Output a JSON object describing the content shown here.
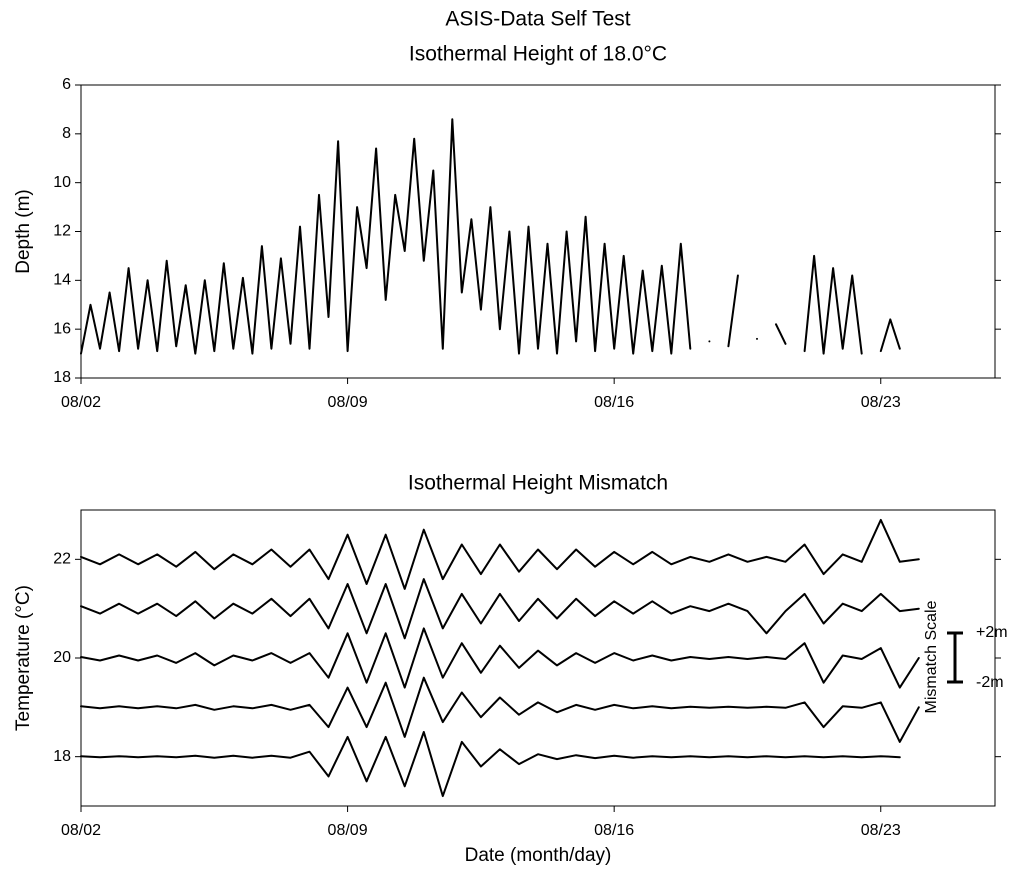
{
  "title": "ASIS-Data Self Test",
  "chart_data": [
    {
      "type": "line",
      "title": "Isothermal Height of 18.0°C",
      "y_label": "Depth (m)",
      "x": [
        2,
        2.25,
        2.5,
        2.75,
        3,
        3.25,
        3.5,
        3.75,
        4,
        4.25,
        4.5,
        4.75,
        5,
        5.25,
        5.5,
        5.75,
        6,
        6.25,
        6.5,
        6.75,
        7,
        7.25,
        7.5,
        7.75,
        8,
        8.25,
        8.5,
        8.75,
        9,
        9.25,
        9.5,
        9.75,
        10,
        10.25,
        10.5,
        10.75,
        11,
        11.25,
        11.5,
        11.75,
        12,
        12.25,
        12.5,
        12.75,
        13,
        13.25,
        13.5,
        13.75,
        14,
        14.25,
        14.5,
        14.75,
        15,
        15.25,
        15.5,
        15.75,
        16,
        16.25,
        16.5,
        16.75,
        17,
        17.25,
        17.5,
        17.75,
        18,
        18.25,
        18.5,
        18.75,
        19,
        19.25,
        19.5,
        19.75,
        20,
        20.25,
        20.5,
        20.75,
        21,
        21.25,
        21.5,
        21.75,
        22,
        22.25,
        22.5,
        22.75,
        23,
        23.25,
        23.5,
        23.75
      ],
      "series": [
        {
          "color": "#000000",
          "values": [
            17,
            15,
            16.8,
            14.5,
            16.9,
            13.5,
            16.8,
            14,
            16.9,
            13.2,
            16.7,
            14.2,
            17,
            14,
            16.9,
            13.3,
            16.8,
            13.9,
            17,
            12.6,
            16.8,
            13.1,
            16.6,
            11.8,
            16.8,
            10.5,
            15.5,
            8.3,
            16.9,
            11,
            13.5,
            8.6,
            14.8,
            10.5,
            12.8,
            8.2,
            13.2,
            9.5,
            16.8,
            7.4,
            14.5,
            11.5,
            15.2,
            11,
            16,
            12,
            17,
            11.8,
            16.8,
            12.5,
            17,
            12,
            16.5,
            11.4,
            16.9,
            12.5,
            16.8,
            13,
            17,
            13.6,
            16.9,
            13.4,
            17,
            12.5,
            16.8,
            null,
            16.5,
            null,
            16.7,
            13.8,
            null,
            16.4,
            null,
            15.8,
            16.6,
            null,
            16.9,
            13,
            17,
            13.5,
            16.8,
            13.8,
            17,
            null,
            16.9,
            15.6,
            16.8,
            null
          ]
        }
      ],
      "xlim": [
        2,
        26
      ],
      "xticks": [
        {
          "value": 2,
          "label": "08/02"
        },
        {
          "value": 9,
          "label": "08/09"
        },
        {
          "value": 16,
          "label": "08/16"
        },
        {
          "value": 23,
          "label": "08/23"
        }
      ],
      "ylim": [
        6,
        18
      ],
      "y_inverted": true,
      "yticks": [
        6,
        8,
        10,
        12,
        14,
        16,
        18
      ]
    },
    {
      "type": "line",
      "title": "Isothermal Height Mismatch",
      "x_label": "Date (month/day)",
      "y_label": "Temperature (°C)",
      "x": [
        2,
        2.5,
        3,
        3.5,
        4,
        4.5,
        5,
        5.5,
        6,
        6.5,
        7,
        7.5,
        8,
        8.5,
        9,
        9.5,
        10,
        10.5,
        11,
        11.5,
        12,
        12.5,
        13,
        13.5,
        14,
        14.5,
        15,
        15.5,
        16,
        16.5,
        17,
        17.5,
        18,
        18.5,
        19,
        19.5,
        20,
        20.5,
        21,
        21.5,
        22,
        22.5,
        23,
        23.5,
        24
      ],
      "series": [
        {
          "color": "#000000",
          "values": [
            22.05,
            21.9,
            22.1,
            21.9,
            22.1,
            21.85,
            22.15,
            21.8,
            22.1,
            21.9,
            22.2,
            21.85,
            22.2,
            21.6,
            22.5,
            21.5,
            22.5,
            21.4,
            22.6,
            21.6,
            22.3,
            21.7,
            22.3,
            21.75,
            22.2,
            21.8,
            22.2,
            21.85,
            22.15,
            21.9,
            22.15,
            21.9,
            22.05,
            21.95,
            22.1,
            21.95,
            22.05,
            21.95,
            22.3,
            21.7,
            22.1,
            21.95,
            22.8,
            21.95,
            22
          ]
        },
        {
          "color": "#000000",
          "values": [
            21.05,
            20.9,
            21.1,
            20.9,
            21.1,
            20.85,
            21.15,
            20.8,
            21.1,
            20.9,
            21.2,
            20.85,
            21.2,
            20.6,
            21.5,
            20.5,
            21.5,
            20.4,
            21.6,
            20.6,
            21.3,
            20.7,
            21.3,
            20.75,
            21.2,
            20.8,
            21.2,
            20.85,
            21.15,
            20.9,
            21.15,
            20.9,
            21.05,
            20.95,
            21.1,
            20.95,
            20.5,
            20.95,
            21.3,
            20.7,
            21.1,
            20.95,
            21.3,
            20.95,
            21
          ]
        },
        {
          "color": "#000000",
          "values": [
            20.02,
            19.95,
            20.05,
            19.95,
            20.05,
            19.9,
            20.1,
            19.85,
            20.05,
            19.95,
            20.1,
            19.9,
            20.1,
            19.6,
            20.5,
            19.5,
            20.5,
            19.4,
            20.6,
            19.6,
            20.3,
            19.7,
            20.25,
            19.8,
            20.15,
            19.85,
            20.1,
            19.9,
            20.1,
            19.95,
            20.05,
            19.95,
            20.02,
            19.98,
            20.02,
            19.98,
            20.02,
            19.98,
            20.3,
            19.5,
            20.05,
            19.98,
            20.2,
            19.4,
            20
          ]
        },
        {
          "color": "#000000",
          "values": [
            19.02,
            18.98,
            19.02,
            18.98,
            19.02,
            18.98,
            19.05,
            18.95,
            19.02,
            18.98,
            19.05,
            18.95,
            19.05,
            18.6,
            19.4,
            18.6,
            19.5,
            18.4,
            19.6,
            18.7,
            19.3,
            18.8,
            19.2,
            18.85,
            19.1,
            18.9,
            19.05,
            18.95,
            19.05,
            18.98,
            19.02,
            18.98,
            19.01,
            18.99,
            19.01,
            18.99,
            19.01,
            18.99,
            19.1,
            18.6,
            19.02,
            18.99,
            19.1,
            18.3,
            19
          ]
        },
        {
          "color": "#000000",
          "values": [
            18.01,
            17.99,
            18.01,
            17.99,
            18.01,
            17.99,
            18.02,
            17.98,
            18.02,
            17.98,
            18.02,
            17.98,
            18.1,
            17.6,
            18.4,
            17.5,
            18.4,
            17.4,
            18.5,
            17.2,
            18.3,
            17.8,
            18.15,
            17.85,
            18.05,
            17.95,
            18.03,
            17.97,
            18.02,
            17.98,
            18.01,
            17.99,
            18.01,
            17.99,
            18.01,
            17.99,
            18.01,
            17.99,
            18.01,
            17.99,
            18.01,
            17.99,
            18.01,
            17.99,
            null
          ]
        }
      ],
      "xlim": [
        2,
        26
      ],
      "xticks": [
        {
          "value": 2,
          "label": "08/02"
        },
        {
          "value": 9,
          "label": "08/09"
        },
        {
          "value": 16,
          "label": "08/16"
        },
        {
          "value": 23,
          "label": "08/23"
        }
      ],
      "ylim": [
        17,
        23
      ],
      "yticks": [
        18,
        20,
        22
      ],
      "annotations": [
        "Mismatch Scale",
        "+2m",
        "-2m"
      ]
    }
  ]
}
